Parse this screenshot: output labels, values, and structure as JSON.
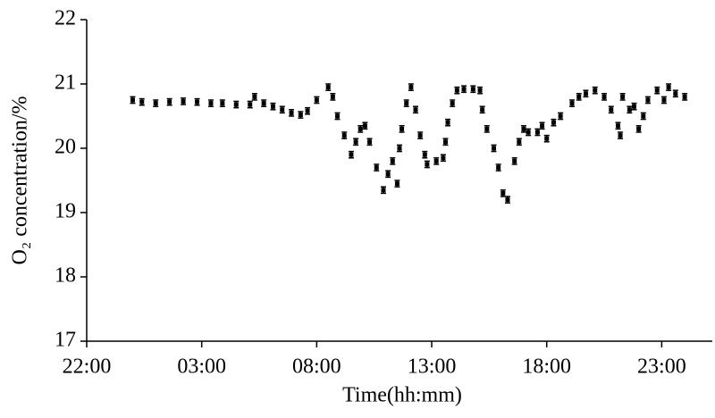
{
  "chart_data": {
    "type": "scatter",
    "x_label": "Time(hh:mm)",
    "y_label": "O₂ concentration/%",
    "color": "#000000",
    "xlim": [
      0,
      27.2
    ],
    "xticks": [
      {
        "value": 0,
        "label": "22:00"
      },
      {
        "value": 5,
        "label": "03:00"
      },
      {
        "value": 10,
        "label": "08:00"
      },
      {
        "value": 15,
        "label": "13:00"
      },
      {
        "value": 20,
        "label": "18:00"
      },
      {
        "value": 25,
        "label": "23:00"
      }
    ],
    "ylim": [
      17,
      22
    ],
    "yticks": [
      17,
      18,
      19,
      20,
      21,
      22
    ],
    "x": [
      2.0,
      2.4,
      3.0,
      3.6,
      4.2,
      4.8,
      5.4,
      5.9,
      6.5,
      7.1,
      7.3,
      7.7,
      8.1,
      8.5,
      8.9,
      9.3,
      9.6,
      10.0,
      10.5,
      10.7,
      10.9,
      11.2,
      11.5,
      11.7,
      11.9,
      12.1,
      12.3,
      12.6,
      12.9,
      13.1,
      13.3,
      13.5,
      13.6,
      13.7,
      13.9,
      14.1,
      14.3,
      14.5,
      14.7,
      14.8,
      15.2,
      15.5,
      15.6,
      15.7,
      15.9,
      16.1,
      16.4,
      16.8,
      17.1,
      17.2,
      17.4,
      17.7,
      17.9,
      18.1,
      18.3,
      18.6,
      18.8,
      19.0,
      19.2,
      19.6,
      19.8,
      20.0,
      20.3,
      20.6,
      21.1,
      21.4,
      21.7,
      22.1,
      22.5,
      22.8,
      23.1,
      23.2,
      23.3,
      23.6,
      23.8,
      24.0,
      24.2,
      24.4,
      24.8,
      25.1,
      25.3,
      25.6,
      26.0
    ],
    "values": [
      20.75,
      20.72,
      20.7,
      20.72,
      20.73,
      20.72,
      20.7,
      20.7,
      20.68,
      20.68,
      20.8,
      20.7,
      20.65,
      20.6,
      20.55,
      20.52,
      20.58,
      20.75,
      20.95,
      20.8,
      20.5,
      20.2,
      19.9,
      20.1,
      20.3,
      20.35,
      20.1,
      19.7,
      19.35,
      19.6,
      19.8,
      19.45,
      20.0,
      20.3,
      20.7,
      20.95,
      20.6,
      20.2,
      19.9,
      19.75,
      19.8,
      19.85,
      20.1,
      20.4,
      20.7,
      20.9,
      20.92,
      20.92,
      20.9,
      20.6,
      20.3,
      20.0,
      19.7,
      19.3,
      19.2,
      19.8,
      20.1,
      20.3,
      20.25,
      20.25,
      20.35,
      20.15,
      20.4,
      20.5,
      20.7,
      20.8,
      20.85,
      20.9,
      20.8,
      20.6,
      20.35,
      20.2,
      20.8,
      20.6,
      20.65,
      20.3,
      20.5,
      20.75,
      20.9,
      20.75,
      20.95,
      20.85,
      20.8
    ],
    "errors": [
      0.05,
      0.05,
      0.05,
      0.05,
      0.05,
      0.05,
      0.05,
      0.05,
      0.05,
      0.05,
      0.05,
      0.05,
      0.05,
      0.05,
      0.05,
      0.05,
      0.05,
      0.05,
      0.05,
      0.05,
      0.05,
      0.05,
      0.05,
      0.05,
      0.05,
      0.05,
      0.05,
      0.05,
      0.05,
      0.05,
      0.05,
      0.05,
      0.05,
      0.05,
      0.05,
      0.05,
      0.05,
      0.05,
      0.05,
      0.05,
      0.05,
      0.05,
      0.05,
      0.05,
      0.05,
      0.05,
      0.05,
      0.05,
      0.05,
      0.05,
      0.05,
      0.05,
      0.05,
      0.05,
      0.05,
      0.05,
      0.05,
      0.05,
      0.05,
      0.05,
      0.05,
      0.05,
      0.05,
      0.05,
      0.05,
      0.05,
      0.05,
      0.05,
      0.05,
      0.05,
      0.05,
      0.05,
      0.05,
      0.05,
      0.05,
      0.05,
      0.05,
      0.05,
      0.05,
      0.05,
      0.05,
      0.05,
      0.05
    ]
  }
}
